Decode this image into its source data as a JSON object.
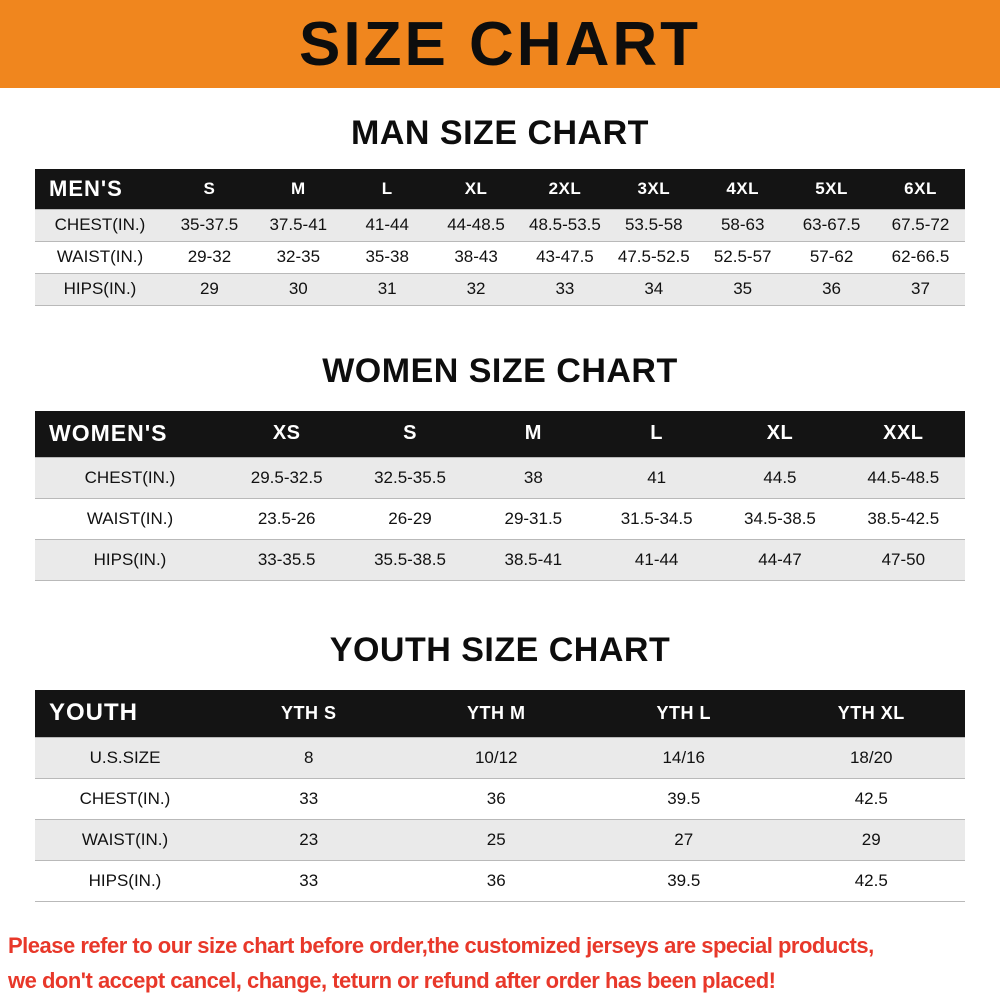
{
  "banner": {
    "title": "SIZE CHART"
  },
  "chart_data": [
    {
      "type": "table",
      "title": "MAN SIZE CHART",
      "columns": [
        "MEN'S",
        "S",
        "M",
        "L",
        "XL",
        "2XL",
        "3XL",
        "4XL",
        "5XL",
        "6XL"
      ],
      "rows": [
        [
          "CHEST(IN.)",
          "35-37.5",
          "37.5-41",
          "41-44",
          "44-48.5",
          "48.5-53.5",
          "53.5-58",
          "58-63",
          "63-67.5",
          "67.5-72"
        ],
        [
          "WAIST(IN.)",
          "29-32",
          "32-35",
          "35-38",
          "38-43",
          "43-47.5",
          "47.5-52.5",
          "52.5-57",
          "57-62",
          "62-66.5"
        ],
        [
          "HIPS(IN.)",
          "29",
          "30",
          "31",
          "32",
          "33",
          "34",
          "35",
          "36",
          "37"
        ]
      ]
    },
    {
      "type": "table",
      "title": "WOMEN SIZE CHART",
      "columns": [
        "WOMEN'S",
        "XS",
        "S",
        "M",
        "L",
        "XL",
        "XXL"
      ],
      "rows": [
        [
          "CHEST(IN.)",
          "29.5-32.5",
          "32.5-35.5",
          "38",
          "41",
          "44.5",
          "44.5-48.5"
        ],
        [
          "WAIST(IN.)",
          "23.5-26",
          "26-29",
          "29-31.5",
          "31.5-34.5",
          "34.5-38.5",
          "38.5-42.5"
        ],
        [
          "HIPS(IN.)",
          "33-35.5",
          "35.5-38.5",
          "38.5-41",
          "41-44",
          "44-47",
          "47-50"
        ]
      ]
    },
    {
      "type": "table",
      "title": "YOUTH SIZE CHART",
      "columns": [
        "YOUTH",
        "YTH S",
        "YTH M",
        "YTH L",
        "YTH XL"
      ],
      "rows": [
        [
          "U.S.SIZE",
          "8",
          "10/12",
          "14/16",
          "18/20"
        ],
        [
          "CHEST(IN.)",
          "33",
          "36",
          "39.5",
          "42.5"
        ],
        [
          "WAIST(IN.)",
          "23",
          "25",
          "27",
          "29"
        ],
        [
          "HIPS(IN.)",
          "33",
          "36",
          "39.5",
          "42.5"
        ]
      ]
    }
  ],
  "footer": {
    "line1": "Please refer to our size chart before order,the customized jerseys are special products,",
    "line2": "we don't accept cancel, change, teturn or refund after order has been placed!"
  },
  "colors": {
    "banner_orange": "#f0861e",
    "table_header_black": "#141414",
    "row_stripe_gray": "#eaeaea",
    "footer_red": "#e8382a"
  }
}
